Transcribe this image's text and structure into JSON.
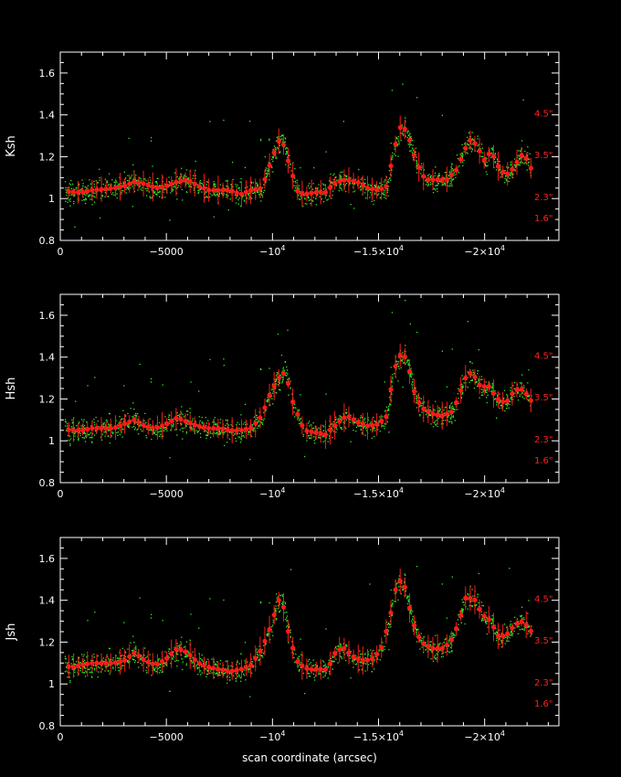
{
  "chart_data": [
    {
      "type": "scatter",
      "ylabel": "Ksh",
      "xlabel": "",
      "xlim": [
        0,
        -23500
      ],
      "ylim": [
        0.8,
        1.7
      ],
      "x_ticks": [
        {
          "value": 0,
          "label": "0"
        },
        {
          "value": -5000,
          "label": "−5000"
        },
        {
          "value": -10000,
          "label": "−10",
          "exp": "4"
        },
        {
          "value": -15000,
          "label": "−1.5×10",
          "exp": "4"
        },
        {
          "value": -20000,
          "label": "−2×10",
          "exp": "4"
        }
      ],
      "y_ticks": [
        {
          "value": 0.8,
          "label": "0.8"
        },
        {
          "value": 1.0,
          "label": "1"
        },
        {
          "value": 1.2,
          "label": "1.2"
        },
        {
          "value": 1.4,
          "label": "1.4"
        },
        {
          "value": 1.6,
          "label": "1.6"
        }
      ],
      "annotations": [
        {
          "text": "4.5\"",
          "y": 1.41
        },
        {
          "text": "3.5\"",
          "y": 1.21
        },
        {
          "text": "2.3\"",
          "y": 1.01
        },
        {
          "text": "1.6\"",
          "y": 0.91
        }
      ],
      "profile": [
        [
          -200,
          1.04
        ],
        [
          -500,
          1.03
        ],
        [
          -1000,
          1.03
        ],
        [
          -1500,
          1.04
        ],
        [
          -2500,
          1.05
        ],
        [
          -3000,
          1.06
        ],
        [
          -3500,
          1.08
        ],
        [
          -4000,
          1.07
        ],
        [
          -4500,
          1.05
        ],
        [
          -5000,
          1.06
        ],
        [
          -5500,
          1.08
        ],
        [
          -6000,
          1.09
        ],
        [
          -6500,
          1.06
        ],
        [
          -7000,
          1.04
        ],
        [
          -7500,
          1.04
        ],
        [
          -8000,
          1.04
        ],
        [
          -8500,
          1.02
        ],
        [
          -9000,
          1.04
        ],
        [
          -9500,
          1.05
        ],
        [
          -10000,
          1.2
        ],
        [
          -10400,
          1.3
        ],
        [
          -10800,
          1.16
        ],
        [
          -11200,
          1.03
        ],
        [
          -11500,
          1.02
        ],
        [
          -12000,
          1.03
        ],
        [
          -12500,
          1.03
        ],
        [
          -13000,
          1.08
        ],
        [
          -13500,
          1.09
        ],
        [
          -14000,
          1.08
        ],
        [
          -14500,
          1.05
        ],
        [
          -15000,
          1.04
        ],
        [
          -15400,
          1.06
        ],
        [
          -15700,
          1.22
        ],
        [
          -16000,
          1.34
        ],
        [
          -16300,
          1.33
        ],
        [
          -16800,
          1.17
        ],
        [
          -17200,
          1.09
        ],
        [
          -17700,
          1.09
        ],
        [
          -18200,
          1.09
        ],
        [
          -18700,
          1.14
        ],
        [
          -19000,
          1.22
        ],
        [
          -19300,
          1.28
        ],
        [
          -19600,
          1.26
        ],
        [
          -20000,
          1.18
        ],
        [
          -20300,
          1.23
        ],
        [
          -20600,
          1.16
        ],
        [
          -21000,
          1.11
        ],
        [
          -21400,
          1.15
        ],
        [
          -21700,
          1.21
        ],
        [
          -22000,
          1.19
        ],
        [
          -22200,
          1.14
        ]
      ]
    },
    {
      "type": "scatter",
      "ylabel": "Hsh",
      "xlabel": "",
      "xlim": [
        0,
        -23500
      ],
      "ylim": [
        0.8,
        1.7
      ],
      "x_ticks": [
        {
          "value": 0,
          "label": "0"
        },
        {
          "value": -5000,
          "label": "−5000"
        },
        {
          "value": -10000,
          "label": "−10",
          "exp": "4"
        },
        {
          "value": -15000,
          "label": "−1.5×10",
          "exp": "4"
        },
        {
          "value": -20000,
          "label": "−2×10",
          "exp": "4"
        }
      ],
      "y_ticks": [
        {
          "value": 0.8,
          "label": "0.8"
        },
        {
          "value": 1.0,
          "label": "1"
        },
        {
          "value": 1.2,
          "label": "1.2"
        },
        {
          "value": 1.4,
          "label": "1.4"
        },
        {
          "value": 1.6,
          "label": "1.6"
        }
      ],
      "annotations": [
        {
          "text": "4.5\"",
          "y": 1.41
        },
        {
          "text": "3.5\"",
          "y": 1.21
        },
        {
          "text": "2.3\"",
          "y": 1.01
        },
        {
          "text": "1.6\"",
          "y": 0.91
        }
      ],
      "profile": [
        [
          -200,
          1.06
        ],
        [
          -500,
          1.05
        ],
        [
          -1000,
          1.05
        ],
        [
          -1500,
          1.06
        ],
        [
          -2500,
          1.06
        ],
        [
          -3000,
          1.08
        ],
        [
          -3500,
          1.1
        ],
        [
          -4000,
          1.07
        ],
        [
          -4500,
          1.06
        ],
        [
          -5000,
          1.08
        ],
        [
          -5500,
          1.11
        ],
        [
          -6000,
          1.09
        ],
        [
          -6500,
          1.07
        ],
        [
          -7000,
          1.06
        ],
        [
          -7500,
          1.06
        ],
        [
          -8000,
          1.05
        ],
        [
          -8500,
          1.05
        ],
        [
          -9000,
          1.06
        ],
        [
          -9500,
          1.12
        ],
        [
          -9900,
          1.23
        ],
        [
          -10300,
          1.3
        ],
        [
          -10600,
          1.33
        ],
        [
          -11000,
          1.17
        ],
        [
          -11500,
          1.05
        ],
        [
          -12000,
          1.04
        ],
        [
          -12500,
          1.03
        ],
        [
          -13000,
          1.08
        ],
        [
          -13500,
          1.12
        ],
        [
          -14000,
          1.09
        ],
        [
          -14500,
          1.07
        ],
        [
          -15000,
          1.08
        ],
        [
          -15400,
          1.12
        ],
        [
          -15700,
          1.33
        ],
        [
          -16000,
          1.41
        ],
        [
          -16300,
          1.4
        ],
        [
          -16700,
          1.23
        ],
        [
          -17000,
          1.16
        ],
        [
          -17500,
          1.13
        ],
        [
          -18000,
          1.12
        ],
        [
          -18500,
          1.14
        ],
        [
          -18800,
          1.22
        ],
        [
          -19100,
          1.3
        ],
        [
          -19400,
          1.33
        ],
        [
          -19800,
          1.26
        ],
        [
          -20200,
          1.26
        ],
        [
          -20600,
          1.2
        ],
        [
          -21000,
          1.18
        ],
        [
          -21400,
          1.24
        ],
        [
          -21700,
          1.25
        ],
        [
          -22000,
          1.22
        ],
        [
          -22200,
          1.19
        ]
      ]
    },
    {
      "type": "scatter",
      "ylabel": "Jsh",
      "xlabel": "scan coordinate (arcsec)",
      "xlim": [
        0,
        -23500
      ],
      "ylim": [
        0.8,
        1.7
      ],
      "x_ticks": [
        {
          "value": 0,
          "label": "0"
        },
        {
          "value": -5000,
          "label": "−5000"
        },
        {
          "value": -10000,
          "label": "−10",
          "exp": "4"
        },
        {
          "value": -15000,
          "label": "−1.5×10",
          "exp": "4"
        },
        {
          "value": -20000,
          "label": "−2×10",
          "exp": "4"
        }
      ],
      "y_ticks": [
        {
          "value": 0.8,
          "label": "0.8"
        },
        {
          "value": 1.0,
          "label": "1"
        },
        {
          "value": 1.2,
          "label": "1.2"
        },
        {
          "value": 1.4,
          "label": "1.4"
        },
        {
          "value": 1.6,
          "label": "1.6"
        }
      ],
      "annotations": [
        {
          "text": "4.5\"",
          "y": 1.41
        },
        {
          "text": "3.5\"",
          "y": 1.21
        },
        {
          "text": "2.3\"",
          "y": 1.01
        },
        {
          "text": "1.6\"",
          "y": 0.91
        }
      ],
      "profile": [
        [
          -200,
          1.09
        ],
        [
          -500,
          1.08
        ],
        [
          -1000,
          1.09
        ],
        [
          -1500,
          1.1
        ],
        [
          -2500,
          1.1
        ],
        [
          -3000,
          1.11
        ],
        [
          -3500,
          1.15
        ],
        [
          -4000,
          1.11
        ],
        [
          -4500,
          1.09
        ],
        [
          -5000,
          1.12
        ],
        [
          -5500,
          1.17
        ],
        [
          -6000,
          1.15
        ],
        [
          -6500,
          1.1
        ],
        [
          -7000,
          1.08
        ],
        [
          -7500,
          1.07
        ],
        [
          -8000,
          1.06
        ],
        [
          -8500,
          1.07
        ],
        [
          -9000,
          1.09
        ],
        [
          -9500,
          1.17
        ],
        [
          -9900,
          1.27
        ],
        [
          -10200,
          1.37
        ],
        [
          -10400,
          1.43
        ],
        [
          -10800,
          1.22
        ],
        [
          -11200,
          1.1
        ],
        [
          -11700,
          1.07
        ],
        [
          -12200,
          1.07
        ],
        [
          -12600,
          1.07
        ],
        [
          -13000,
          1.16
        ],
        [
          -13400,
          1.17
        ],
        [
          -13800,
          1.13
        ],
        [
          -14300,
          1.11
        ],
        [
          -14700,
          1.12
        ],
        [
          -15100,
          1.16
        ],
        [
          -15500,
          1.3
        ],
        [
          -15900,
          1.5
        ],
        [
          -16200,
          1.48
        ],
        [
          -16600,
          1.3
        ],
        [
          -17000,
          1.2
        ],
        [
          -17500,
          1.17
        ],
        [
          -18000,
          1.17
        ],
        [
          -18400,
          1.2
        ],
        [
          -18800,
          1.3
        ],
        [
          -19100,
          1.41
        ],
        [
          -19500,
          1.41
        ],
        [
          -19900,
          1.33
        ],
        [
          -20300,
          1.3
        ],
        [
          -20600,
          1.23
        ],
        [
          -21000,
          1.23
        ],
        [
          -21400,
          1.28
        ],
        [
          -21700,
          1.3
        ],
        [
          -22000,
          1.28
        ],
        [
          -22200,
          1.25
        ]
      ]
    }
  ]
}
